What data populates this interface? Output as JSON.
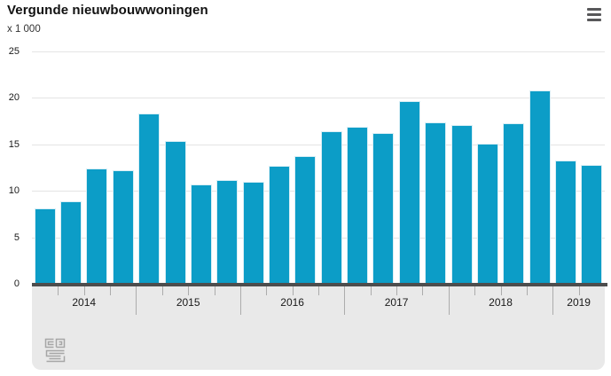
{
  "header": {
    "title": "Vergunde nieuwbouwwoningen",
    "menu_icon": "hamburger-menu-icon"
  },
  "chart_data": {
    "type": "bar",
    "title": "Vergunde nieuwbouwwoningen",
    "unit_label": "x 1 000",
    "ylim": [
      0,
      25
    ],
    "yticks": [
      0,
      5,
      10,
      15,
      20,
      25
    ],
    "grid": true,
    "legend_position": "none",
    "bar_color": "#0c9dc7",
    "axis_band_color": "#e9e9e9",
    "baseline_color": "#4d4d4d",
    "categories": [
      "2014",
      "2015",
      "2016",
      "2017",
      "2018",
      "2019"
    ],
    "groups": [
      {
        "year": "2014",
        "values": [
          8.0,
          8.8,
          12.3,
          12.1
        ]
      },
      {
        "year": "2015",
        "values": [
          18.2,
          15.3,
          10.6,
          11.1
        ]
      },
      {
        "year": "2016",
        "values": [
          10.9,
          12.6,
          13.6,
          16.3
        ]
      },
      {
        "year": "2017",
        "values": [
          16.8,
          16.1,
          19.6,
          17.3
        ]
      },
      {
        "year": "2018",
        "values": [
          17.0,
          15.0,
          17.2,
          20.7
        ]
      },
      {
        "year": "2019",
        "values": [
          13.2,
          12.7
        ]
      }
    ]
  },
  "footer": {
    "logo_icon": "cbs-logo"
  }
}
